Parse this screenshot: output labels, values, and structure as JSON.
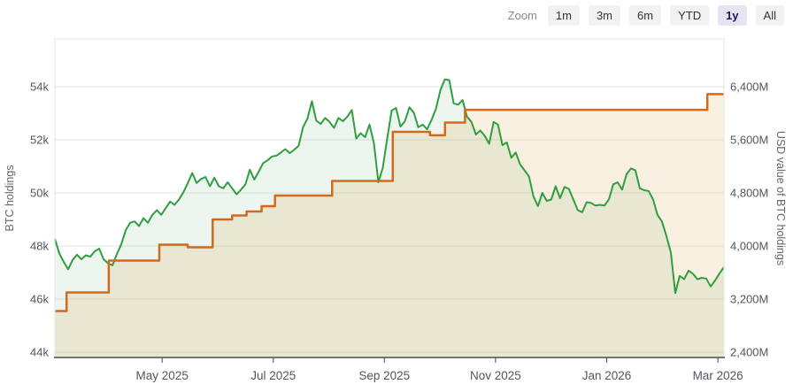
{
  "toolbar": {
    "zoom_label": "Zoom",
    "buttons": [
      {
        "id": "1m",
        "label": "1m",
        "selected": false
      },
      {
        "id": "3m",
        "label": "3m",
        "selected": false
      },
      {
        "id": "6m",
        "label": "6m",
        "selected": false
      },
      {
        "id": "ytd",
        "label": "YTD",
        "selected": false
      },
      {
        "id": "1y",
        "label": "1y",
        "selected": true
      },
      {
        "id": "all",
        "label": "All",
        "selected": false
      }
    ]
  },
  "chart_data": {
    "type": "line",
    "title": "",
    "grid": true,
    "x_axis": {
      "unit": "months since 2025-03-01",
      "t_min": 0.07,
      "t_max": 12.11,
      "ticks": [
        {
          "t": 2,
          "label": "May 2025"
        },
        {
          "t": 4,
          "label": "Jul 2025"
        },
        {
          "t": 6,
          "label": "Sep 2025"
        },
        {
          "t": 8,
          "label": "Nov 2025"
        },
        {
          "t": 10,
          "label": "Jan 2026"
        },
        {
          "t": 12,
          "label": "Mar 2026"
        }
      ]
    },
    "y_axis_left": {
      "title": "BTC holdings",
      "min": 44,
      "max": 54,
      "tick_values": [
        54,
        52,
        50,
        48,
        46,
        44
      ],
      "tick_labels": [
        "54k",
        "52k",
        "50k",
        "48k",
        "46k",
        "44k"
      ]
    },
    "y_axis_right": {
      "title": "USD value of BTC holdings",
      "min": 2400,
      "max": 6400,
      "tick_values": [
        6400,
        5600,
        4800,
        4000,
        3200,
        2400
      ],
      "tick_labels": [
        "6,400M",
        "5,600M",
        "4,800M",
        "4,000M",
        "3,200M",
        "2,400M"
      ]
    },
    "series": [
      {
        "name": "BTC holdings",
        "axis": "left",
        "style": "step",
        "color": "#d2691e",
        "fill_rgba": "rgba(210,150,40,0.14)",
        "points": [
          [
            0.07,
            45.55
          ],
          [
            0.28,
            46.25
          ],
          [
            1.04,
            47.45
          ],
          [
            1.95,
            48.05
          ],
          [
            2.46,
            47.95
          ],
          [
            2.91,
            49.0
          ],
          [
            3.26,
            49.15
          ],
          [
            3.52,
            49.3
          ],
          [
            3.79,
            49.5
          ],
          [
            4.03,
            49.9
          ],
          [
            5.06,
            50.45
          ],
          [
            6.15,
            52.3
          ],
          [
            6.82,
            52.17
          ],
          [
            7.09,
            52.65
          ],
          [
            7.45,
            53.13
          ],
          [
            11.81,
            53.72
          ],
          [
            12.11,
            53.72
          ]
        ]
      },
      {
        "name": "USD value of BTC holdings",
        "axis": "right",
        "style": "line",
        "color": "#2f9e41",
        "fill_rgba": "rgba(47,158,65,0.09)",
        "t_start": 0.07,
        "t_step": 0.07974,
        "values": [
          4107,
          3890,
          3760,
          3650,
          3790,
          3870,
          3800,
          3860,
          3840,
          3920,
          3960,
          3800,
          3740,
          3710,
          3880,
          4030,
          4240,
          4350,
          4370,
          4300,
          4420,
          4350,
          4470,
          4540,
          4470,
          4570,
          4670,
          4620,
          4700,
          4810,
          4950,
          5100,
          4950,
          5010,
          5040,
          4900,
          5030,
          4900,
          4870,
          4960,
          4870,
          4780,
          4850,
          4930,
          5150,
          5000,
          5120,
          5250,
          5290,
          5350,
          5360,
          5410,
          5460,
          5400,
          5450,
          5510,
          5790,
          5920,
          6180,
          5890,
          5840,
          5930,
          5870,
          5780,
          5930,
          5880,
          5950,
          6050,
          5620,
          5700,
          5640,
          5830,
          5550,
          4960,
          5180,
          5620,
          6040,
          6080,
          5800,
          5880,
          6090,
          6010,
          5790,
          5830,
          5760,
          5900,
          6070,
          6350,
          6510,
          6500,
          6150,
          6130,
          6200,
          5950,
          5870,
          5680,
          5740,
          5660,
          5540,
          5870,
          5830,
          5520,
          5560,
          5330,
          5410,
          5230,
          5140,
          5050,
          4750,
          4600,
          4800,
          4680,
          4700,
          4900,
          4720,
          4890,
          4860,
          4700,
          4540,
          4510,
          4660,
          4650,
          4610,
          4620,
          4610,
          4700,
          4930,
          4960,
          4850,
          5080,
          5170,
          5140,
          4870,
          4840,
          4830,
          4700,
          4470,
          4370,
          4150,
          3900,
          3290,
          3550,
          3500,
          3630,
          3580,
          3500,
          3520,
          3510,
          3390,
          3480,
          3590,
          3680
        ]
      }
    ]
  },
  "colors": {
    "grid": "#e6e6e6",
    "plot_border": "#e6e6e6",
    "axis_line": "#4a4a55",
    "tick_label": "#55555e",
    "axis_title": "#666666",
    "button_bg": "#f2f2f2",
    "button_text": "#333333",
    "selected_bg": "#e4e4f2",
    "selected_text": "#1c1c50"
  }
}
